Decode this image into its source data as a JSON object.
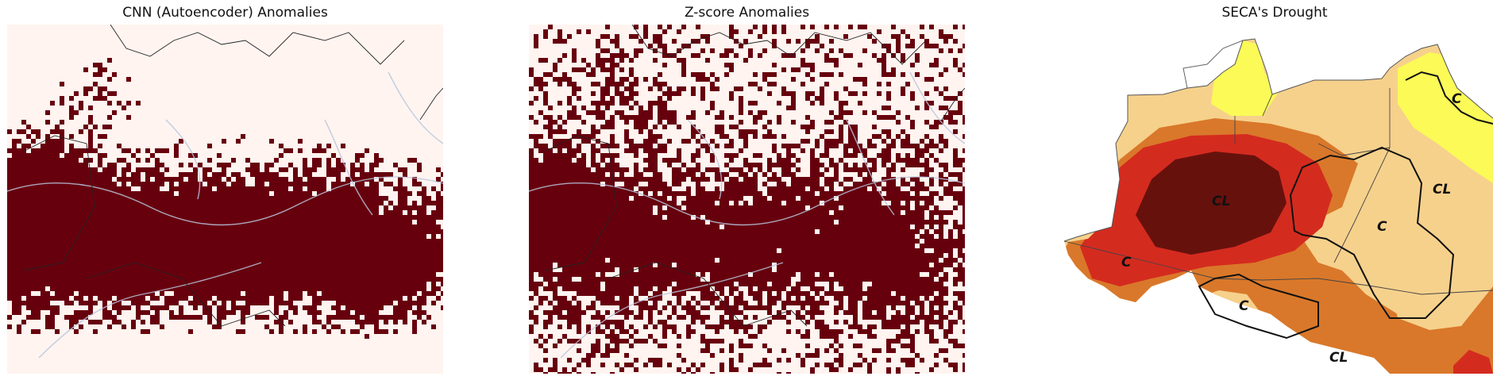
{
  "panels": {
    "cnn": {
      "title": "CNN (Autoencoder) Anomalies",
      "anomaly_color": "#67000d",
      "background_color": "#fff4f0"
    },
    "zscore": {
      "title": "Z-score Anomalies",
      "anomaly_color": "#67000d",
      "background_color": "#fff4f0"
    },
    "seca": {
      "title": "SECA's Drought",
      "labels": [
        "C",
        "CL",
        "CL",
        "C",
        "C",
        "C",
        "CL"
      ],
      "colors": {
        "extreme": "#67110d",
        "severe": "#d42b1f",
        "moderate": "#d9782a",
        "mild": "#f6d18c",
        "dry": "#fbfa57",
        "none": "#ffffff"
      }
    }
  },
  "legend_overlays": {
    "country_borders": "#222222",
    "rivers": "#b8c4dd"
  }
}
